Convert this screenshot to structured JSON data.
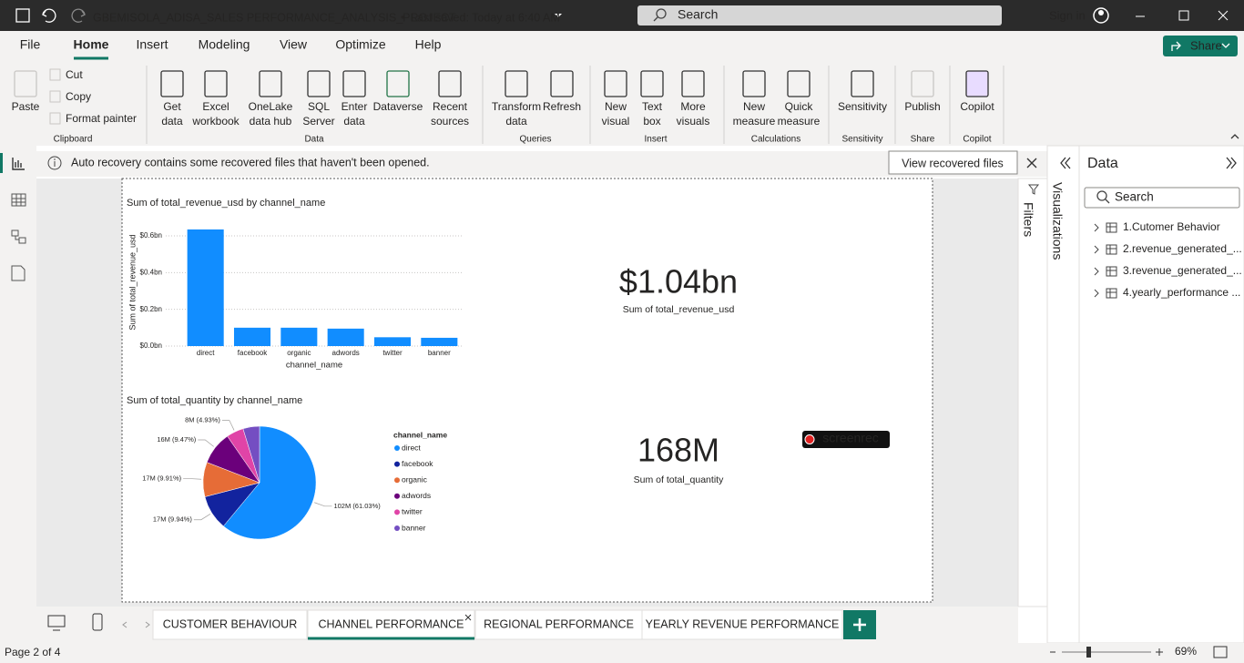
{
  "title_bar": {
    "file_name": "GBEMISOLA_ADISA_SALES PERFORMANCE_ANALYSIS_PROJECT",
    "saved": "Last saved: Today at 6:40 AM",
    "search": "Search",
    "sign_in": "Sign in"
  },
  "menu": {
    "tabs": [
      "File",
      "Home",
      "Insert",
      "Modeling",
      "View",
      "Optimize",
      "Help"
    ],
    "share": "Share"
  },
  "ribbon": {
    "groups": [
      {
        "name": "Clipboard",
        "buttons": [
          [
            "Paste"
          ]
        ],
        "small_buttons": [
          "Cut",
          "Copy",
          "Format painter"
        ]
      },
      {
        "name": "Data",
        "buttons": [
          [
            "Get",
            "data"
          ],
          [
            "Excel",
            "workbook"
          ],
          [
            "OneLake",
            "data hub"
          ],
          [
            "SQL",
            "Server"
          ],
          [
            "Enter",
            "data"
          ],
          [
            "Dataverse"
          ],
          [
            "Recent",
            "sources"
          ]
        ]
      },
      {
        "name": "Queries",
        "buttons": [
          [
            "Transform",
            "data"
          ],
          [
            "Refresh"
          ]
        ]
      },
      {
        "name": "Insert",
        "buttons": [
          [
            "New",
            "visual"
          ],
          [
            "Text",
            "box"
          ],
          [
            "More",
            "visuals"
          ]
        ]
      },
      {
        "name": "Calculations",
        "buttons": [
          [
            "New",
            "measure"
          ],
          [
            "Quick",
            "measure"
          ]
        ]
      },
      {
        "name": "Sensitivity",
        "buttons": [
          [
            "Sensitivity"
          ]
        ]
      },
      {
        "name": "Share",
        "buttons": [
          [
            "Publish"
          ]
        ]
      },
      {
        "name": "Copilot",
        "buttons": [
          [
            "Copilot"
          ]
        ]
      }
    ]
  },
  "notice": {
    "text": "Auto recovery contains some recovered files that haven't been opened.",
    "button": "View recovered files"
  },
  "report": {
    "bar_chart": {
      "type": "bar",
      "title": "Sum of total_revenue_usd by channel_name",
      "x_label": "channel_name",
      "y_label": "Sum of total_revenue_usd",
      "categories": [
        "direct",
        "facebook",
        "organic",
        "adwords",
        "twitter",
        "banner"
      ],
      "values": [
        0.635,
        0.1,
        0.1,
        0.095,
        0.048,
        0.045
      ],
      "color": "#118dff",
      "ylim": [
        0,
        0.65
      ],
      "yticks": [
        {
          "value": 0,
          "label": "$0.0bn"
        },
        {
          "value": 0.2,
          "label": "$0.2bn"
        },
        {
          "value": 0.4,
          "label": "$0.4bn"
        },
        {
          "value": 0.6,
          "label": "$0.6bn"
        }
      ],
      "grid": true
    },
    "card_revenue": {
      "value": "$1.04bn",
      "label": "Sum of total_revenue_usd"
    },
    "pie_chart": {
      "type": "pie",
      "title": "Sum of total_quantity by channel_name",
      "legend_title": "channel_name",
      "categories": [
        "direct",
        "facebook",
        "organic",
        "adwords",
        "twitter",
        "banner"
      ],
      "values": [
        61.03,
        9.94,
        9.91,
        9.47,
        4.93,
        4.72
      ],
      "value_labels": [
        "102M (61.03%)",
        "17M (9.94%)",
        "17M (9.91%)",
        "16M (9.47%)",
        "8M (4.93%)",
        null
      ],
      "colors": [
        "#118dff",
        "#12239e",
        "#e66c37",
        "#6b007b",
        "#e044a7",
        "#744ec2"
      ]
    },
    "card_quantity": {
      "value": "168M",
      "label": "Sum of total_quantity"
    },
    "watermark": "screenrec"
  },
  "panes": {
    "filters": "Filters",
    "visualizations": "Visualizations",
    "data": {
      "title": "Data",
      "search": "Search",
      "tables": [
        "1.Cutomer Behavior",
        "2.revenue_generated_...",
        "3.revenue_generated_...",
        "4.yearly_performance ..."
      ]
    }
  },
  "page_tabs": [
    "CUSTOMER BEHAVIOUR",
    "CHANNEL PERFORMANCE",
    "REGIONAL PERFORMANCE",
    "YEARLY REVENUE PERFORMANCE"
  ],
  "status": {
    "page": "Page 2 of 4",
    "zoom": "69%"
  }
}
